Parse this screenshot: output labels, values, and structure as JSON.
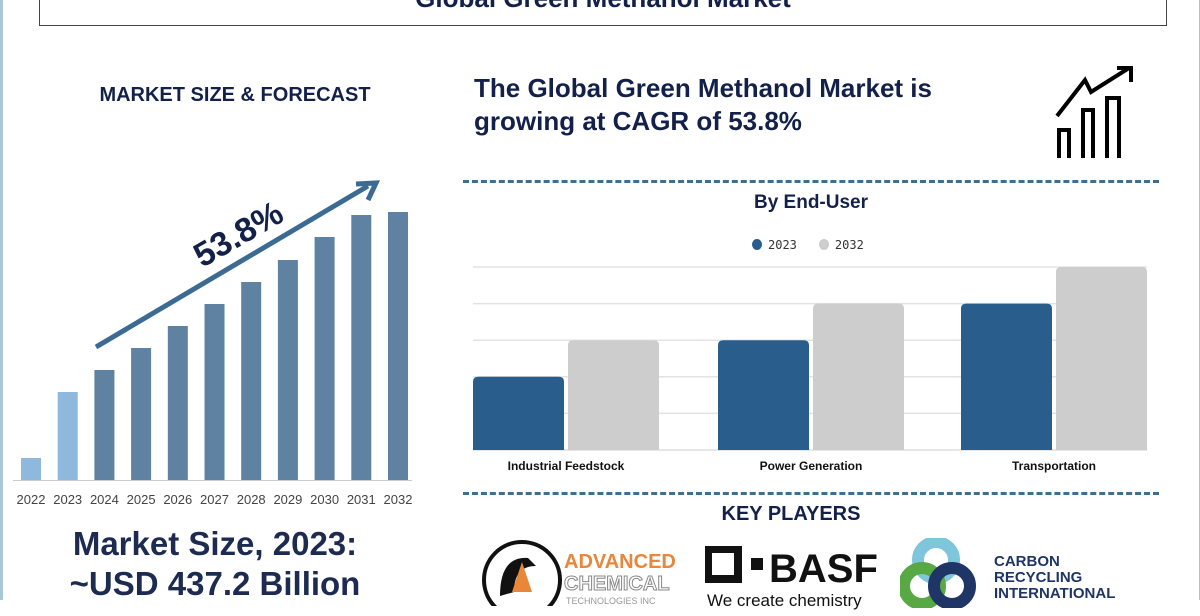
{
  "title": "Global Green Methanol Market",
  "left_heading": "MARKET SIZE & FORECAST",
  "headline": "The Global Green Methanol Market is growing at CAGR of 53.8%",
  "market_size_line1": "Market Size, 2023:",
  "market_size_line2": "~USD 437.2 Billion",
  "key_players_heading": "KEY PLAYERS",
  "key_players": [
    {
      "name": "ADVANCED CHEMICAL TECHNOLOGIES INC",
      "logo": "advanced-chemical-logo"
    },
    {
      "name": "BASF",
      "tagline": "We create chemistry",
      "logo": "basf-logo"
    },
    {
      "name": "CARBON RECYCLING INTERNATIONAL",
      "logo": "cri-logo"
    }
  ],
  "icons": {
    "growth": "bar-chart-growth-arrow-icon"
  },
  "chart_data": [
    {
      "type": "bar",
      "title": "",
      "annotation": "53.8%",
      "categories": [
        "2022",
        "2023",
        "2024",
        "2025",
        "2026",
        "2027",
        "2028",
        "2029",
        "2030",
        "2031",
        "2032"
      ],
      "values": [
        22,
        88,
        110,
        132,
        154,
        176,
        198,
        220,
        243,
        265,
        268
      ],
      "colors": {
        "historical": "#8fb8dd",
        "forecast": "#5f82a2",
        "arrow": "#3b6b92",
        "annotation": "#13214a"
      },
      "grid": false
    },
    {
      "type": "bar",
      "title": "By End-User",
      "categories": [
        "Industrial Feedstock",
        "Power Generation",
        "Transportation"
      ],
      "series": [
        {
          "name": "2023",
          "values": [
            2,
            3,
            4
          ],
          "color": "#285d8c"
        },
        {
          "name": "2032",
          "values": [
            3,
            4,
            5
          ],
          "color": "#cdcdcd"
        }
      ],
      "ylim": [
        0,
        5
      ],
      "grid": true,
      "legend": "top-center"
    }
  ]
}
